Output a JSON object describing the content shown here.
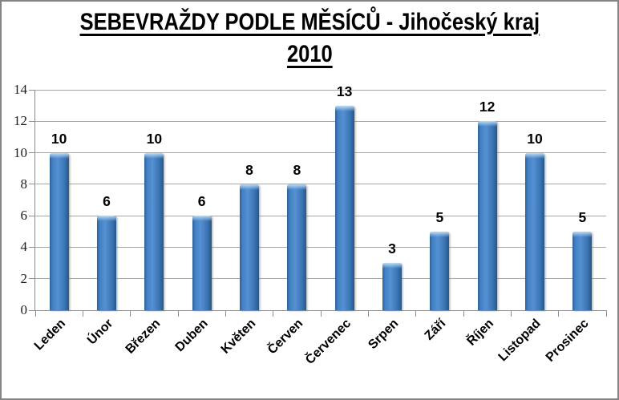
{
  "chart_data": {
    "type": "bar",
    "title_line1": "SEBEVRAŽDY PODLE MĚSÍCŮ - Jihočeský kraj",
    "title_line2": "2010",
    "categories": [
      "Leden",
      "Únor",
      "Březen",
      "Duben",
      "Květen",
      "Červen",
      "Červenec",
      "Srpen",
      "Září",
      "Říjen",
      "Listopad",
      "Prosinec"
    ],
    "values": [
      10,
      6,
      10,
      6,
      8,
      8,
      13,
      3,
      5,
      12,
      10,
      5
    ],
    "xlabel": "",
    "ylabel": "",
    "ylim": [
      0,
      14
    ],
    "yticks": [
      0,
      2,
      4,
      6,
      8,
      10,
      12,
      14
    ],
    "grid": "horizontal",
    "legend": "none",
    "data_labels": true,
    "x_label_rotation_deg": 45,
    "colors": {
      "bar_main": "#4181c4",
      "bar_edge_dark": "#2d5f96",
      "bar_highlight": "#c4e0f7",
      "gridline": "#a6a6a6",
      "axis": "#8e8e8e",
      "frame_border": "#838383",
      "text": "#000000",
      "background": "#ffffff"
    }
  }
}
